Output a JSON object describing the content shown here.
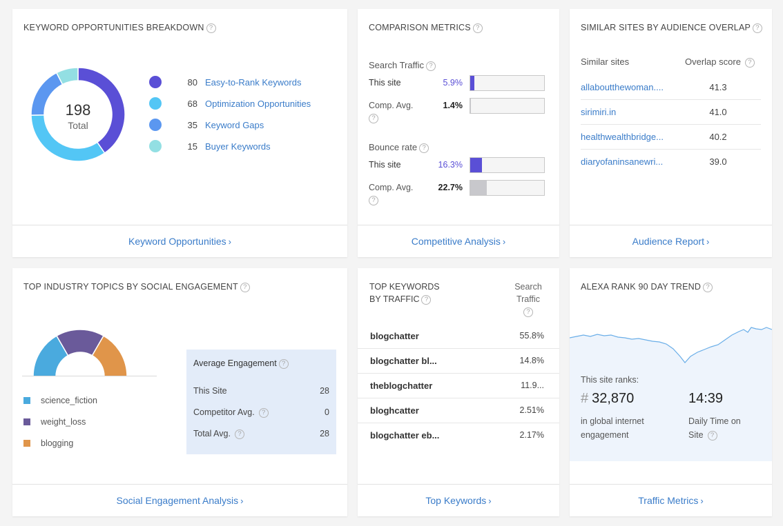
{
  "colors": {
    "link": "#3a7cc9",
    "easy": "#5a4fd6",
    "optimization": "#53c6f5",
    "gaps": "#5b97f0",
    "buyer": "#93dfe3",
    "this_site_bar": "#5a4fd6",
    "comp_bar": "#c8c8cc",
    "science_fiction": "#4aaade",
    "weight_loss": "#6a5a9a",
    "blogging": "#e0954a",
    "trend_line": "#6aaee8",
    "trend_fill": "#eef4fc"
  },
  "keyword_opps": {
    "title": "KEYWORD OPPORTUNITIES BREAKDOWN",
    "total_value": "198",
    "total_label": "Total",
    "items": [
      {
        "count": "80",
        "label": "Easy-to-Rank Keywords"
      },
      {
        "count": "68",
        "label": "Optimization Opportunities"
      },
      {
        "count": "35",
        "label": "Keyword Gaps"
      },
      {
        "count": "15",
        "label": "Buyer Keywords"
      }
    ],
    "footer": "Keyword Opportunities"
  },
  "comparison": {
    "title": "COMPARISON METRICS",
    "search_traffic": {
      "label": "Search Traffic",
      "this_site_label": "This site",
      "this_site_value": "5.9%",
      "this_site_pct": 5.9,
      "comp_label": "Comp. Avg.",
      "comp_value": "1.4%",
      "comp_pct": 1.4
    },
    "bounce_rate": {
      "label": "Bounce rate",
      "this_site_label": "This site",
      "this_site_value": "16.3%",
      "this_site_pct": 16.3,
      "comp_label": "Comp. Avg.",
      "comp_value": "22.7%",
      "comp_pct": 22.7
    },
    "footer": "Competitive Analysis"
  },
  "similar_sites": {
    "title": "SIMILAR SITES BY AUDIENCE OVERLAP",
    "col_site": "Similar sites",
    "col_score": "Overlap score",
    "rows": [
      {
        "site": "allaboutthewoman....",
        "score": "41.3"
      },
      {
        "site": "sirimiri.in",
        "score": "41.0"
      },
      {
        "site": "healthwealthbridge...",
        "score": "40.2"
      },
      {
        "site": "diaryofaninsanewri...",
        "score": "39.0"
      }
    ],
    "footer": "Audience Report"
  },
  "social": {
    "title": "TOP INDUSTRY TOPICS BY SOCIAL ENGAGEMENT",
    "topics": [
      "science_fiction",
      "weight_loss",
      "blogging"
    ],
    "engagement": {
      "title": "Average Engagement",
      "rows": [
        {
          "label": "This Site",
          "value": "28"
        },
        {
          "label": "Competitor Avg.",
          "value": "0"
        },
        {
          "label": "Total Avg.",
          "value": "28"
        }
      ]
    },
    "footer": "Social Engagement Analysis"
  },
  "top_keywords": {
    "title_line1": "TOP KEYWORDS",
    "title_line2": "BY TRAFFIC",
    "col_line1": "Search",
    "col_line2": "Traffic",
    "rows": [
      {
        "keyword": "blogchatter",
        "traffic": "55.8%"
      },
      {
        "keyword": "blogchatter bl...",
        "traffic": "14.8%"
      },
      {
        "keyword": "theblogchatter",
        "traffic": "11.9..."
      },
      {
        "keyword": "bloghcatter",
        "traffic": "2.51%"
      },
      {
        "keyword": "blogchatter eb...",
        "traffic": "2.17%"
      }
    ],
    "footer": "Top Keywords"
  },
  "alexa": {
    "title": "ALEXA RANK 90 DAY TREND",
    "ranks_label": "This site ranks:",
    "hash": "#",
    "rank": "32,870",
    "rank_desc_1": "in global internet",
    "rank_desc_2": "engagement",
    "time": "14:39",
    "time_desc_1": "Daily Time on",
    "time_desc_2": "Site",
    "footer": "Traffic Metrics"
  }
}
